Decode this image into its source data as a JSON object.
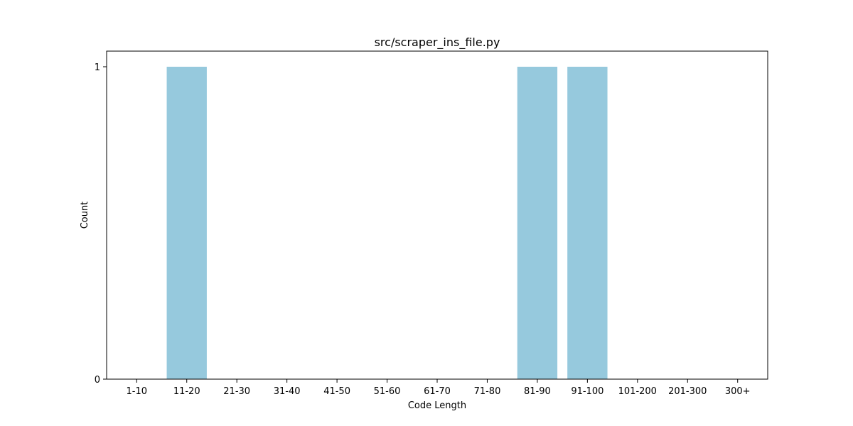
{
  "chart_data": {
    "type": "bar",
    "title": "src/scraper_ins_file.py",
    "xlabel": "Code Length",
    "ylabel": "Count",
    "categories": [
      "1-10",
      "11-20",
      "21-30",
      "31-40",
      "41-50",
      "51-60",
      "61-70",
      "71-80",
      "81-90",
      "91-100",
      "101-200",
      "201-300",
      "300+"
    ],
    "values": [
      0,
      1,
      0,
      0,
      0,
      0,
      0,
      0,
      1,
      1,
      0,
      0,
      0
    ],
    "ylim": [
      0,
      1.05
    ],
    "yticks": [
      0,
      1
    ],
    "grid": false,
    "bar_color": "#96c9dd"
  }
}
